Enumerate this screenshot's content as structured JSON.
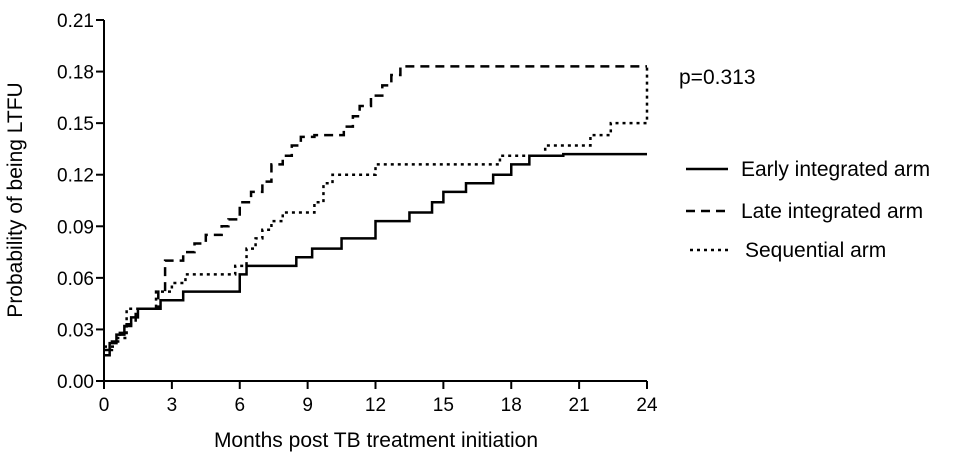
{
  "chart_data": {
    "type": "line",
    "xlabel": "Months post TB treatment initiation",
    "ylabel": "Probability of being LTFU",
    "xlim": [
      0,
      24
    ],
    "ylim": [
      0,
      0.21
    ],
    "xticks": [
      0,
      3,
      6,
      9,
      12,
      15,
      18,
      21,
      24
    ],
    "yticks": [
      0.0,
      0.03,
      0.06,
      0.09,
      0.12,
      0.15,
      0.18,
      0.21
    ],
    "xtick_labels": [
      "0",
      "3",
      "6",
      "9",
      "12",
      "15",
      "18",
      "21",
      "24"
    ],
    "ytick_labels": [
      "0.00",
      "0.03",
      "0.06",
      "0.09",
      "0.12",
      "0.15",
      "0.18",
      "0.21"
    ],
    "grid": false,
    "legend_position": "right",
    "annotation": "p=0.313",
    "series": [
      {
        "name": "Early integrated arm",
        "style": "solid",
        "color": "#000000",
        "x": [
          0,
          0.25,
          0.55,
          0.9,
          1.2,
          1.5,
          2.5,
          3.5,
          6,
          6.3,
          8.5,
          9.2,
          10.5,
          12,
          13.5,
          14.5,
          15,
          16,
          17.2,
          18,
          18.8,
          20.3,
          24
        ],
        "y": [
          0.015,
          0.022,
          0.027,
          0.032,
          0.037,
          0.042,
          0.047,
          0.052,
          0.062,
          0.067,
          0.072,
          0.077,
          0.083,
          0.093,
          0.098,
          0.104,
          0.11,
          0.115,
          0.12,
          0.126,
          0.131,
          0.132,
          0.132
        ]
      },
      {
        "name": "Late integrated arm",
        "style": "dashed",
        "color": "#000000",
        "x": [
          0,
          0.35,
          0.7,
          1.0,
          1.4,
          2.4,
          2.7,
          3.5,
          4.0,
          4.5,
          5.2,
          5.5,
          6.0,
          6.5,
          7.0,
          7.4,
          7.9,
          8.3,
          8.7,
          9.0,
          9.3,
          10.6,
          11.0,
          11.3,
          11.8,
          12.3,
          12.7,
          13.1,
          24
        ],
        "y": [
          0.018,
          0.023,
          0.028,
          0.033,
          0.042,
          0.052,
          0.07,
          0.075,
          0.08,
          0.085,
          0.09,
          0.094,
          0.104,
          0.11,
          0.116,
          0.126,
          0.131,
          0.137,
          0.142,
          0.142,
          0.143,
          0.148,
          0.154,
          0.16,
          0.166,
          0.172,
          0.178,
          0.183,
          0.183
        ]
      },
      {
        "name": "Sequential arm",
        "style": "dotted",
        "color": "#000000",
        "x": [
          0,
          0.5,
          1.0,
          2.3,
          2.6,
          3.0,
          3.6,
          5.8,
          6.3,
          6.7,
          7.0,
          7.4,
          7.9,
          8.3,
          9.3,
          9.7,
          10.1,
          11.2,
          12.0,
          17.0,
          17.5,
          19.5,
          20.3,
          21.5,
          21.9,
          22.4,
          23.5,
          24
        ],
        "y": [
          0.02,
          0.025,
          0.042,
          0.052,
          0.052,
          0.057,
          0.062,
          0.067,
          0.077,
          0.083,
          0.088,
          0.093,
          0.098,
          0.098,
          0.104,
          0.115,
          0.12,
          0.12,
          0.126,
          0.126,
          0.131,
          0.137,
          0.137,
          0.143,
          0.143,
          0.15,
          0.15,
          0.183
        ]
      }
    ]
  }
}
